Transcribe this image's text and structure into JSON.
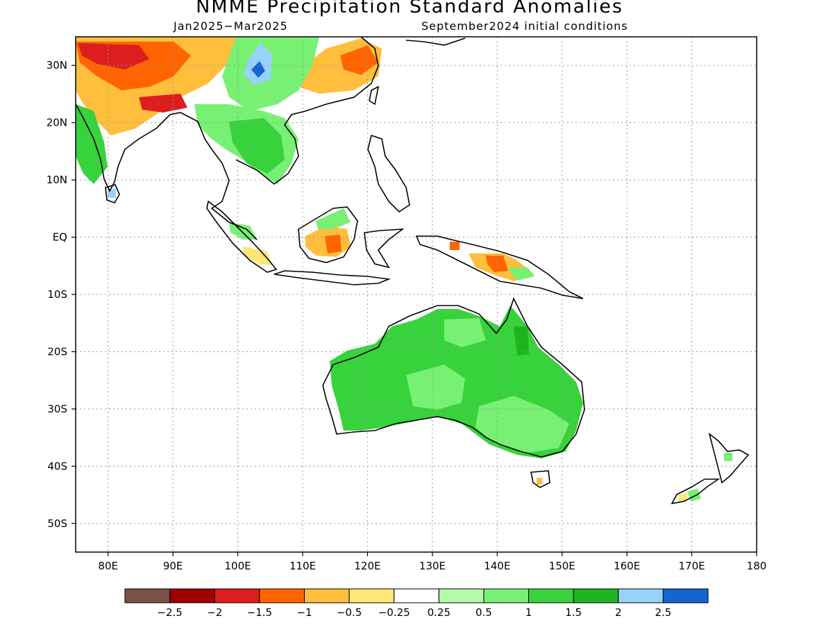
{
  "title": "NMME Precipitation Standard Anomalies",
  "subtitle_left": "Jan2025−Mar2025",
  "subtitle_right": "September2024 initial conditions",
  "map": {
    "lon_range": [
      75,
      180
    ],
    "lat_range": [
      -55,
      35
    ],
    "lat_ticks": [
      {
        "value": 30,
        "label": "30N"
      },
      {
        "value": 20,
        "label": "20N"
      },
      {
        "value": 10,
        "label": "10N"
      },
      {
        "value": 0,
        "label": "EQ"
      },
      {
        "value": -10,
        "label": "10S"
      },
      {
        "value": -20,
        "label": "20S"
      },
      {
        "value": -30,
        "label": "30S"
      },
      {
        "value": -40,
        "label": "40S"
      },
      {
        "value": -50,
        "label": "50S"
      }
    ],
    "lon_ticks": [
      {
        "value": 80,
        "label": "80E"
      },
      {
        "value": 90,
        "label": "90E"
      },
      {
        "value": 100,
        "label": "100E"
      },
      {
        "value": 110,
        "label": "110E"
      },
      {
        "value": 120,
        "label": "120E"
      },
      {
        "value": 130,
        "label": "130E"
      },
      {
        "value": 140,
        "label": "140E"
      },
      {
        "value": 150,
        "label": "150E"
      },
      {
        "value": 160,
        "label": "160E"
      },
      {
        "value": 170,
        "label": "170E"
      },
      {
        "value": 180,
        "label": "180"
      }
    ]
  },
  "colorbar": {
    "colors": [
      "#7a5246",
      "#a00000",
      "#dc1e1e",
      "#ff6400",
      "#ffbe3c",
      "#ffe678",
      "#ffffff",
      "#b4faaa",
      "#78f073",
      "#37d23c",
      "#1eb41e",
      "#96d2fa",
      "#1464d2"
    ],
    "labels": [
      "−2.5",
      "−2",
      "−1.5",
      "−1",
      "−0.5",
      "−0.25",
      "0.25",
      "0.5",
      "1",
      "1.5",
      "2",
      "2.5"
    ]
  }
}
